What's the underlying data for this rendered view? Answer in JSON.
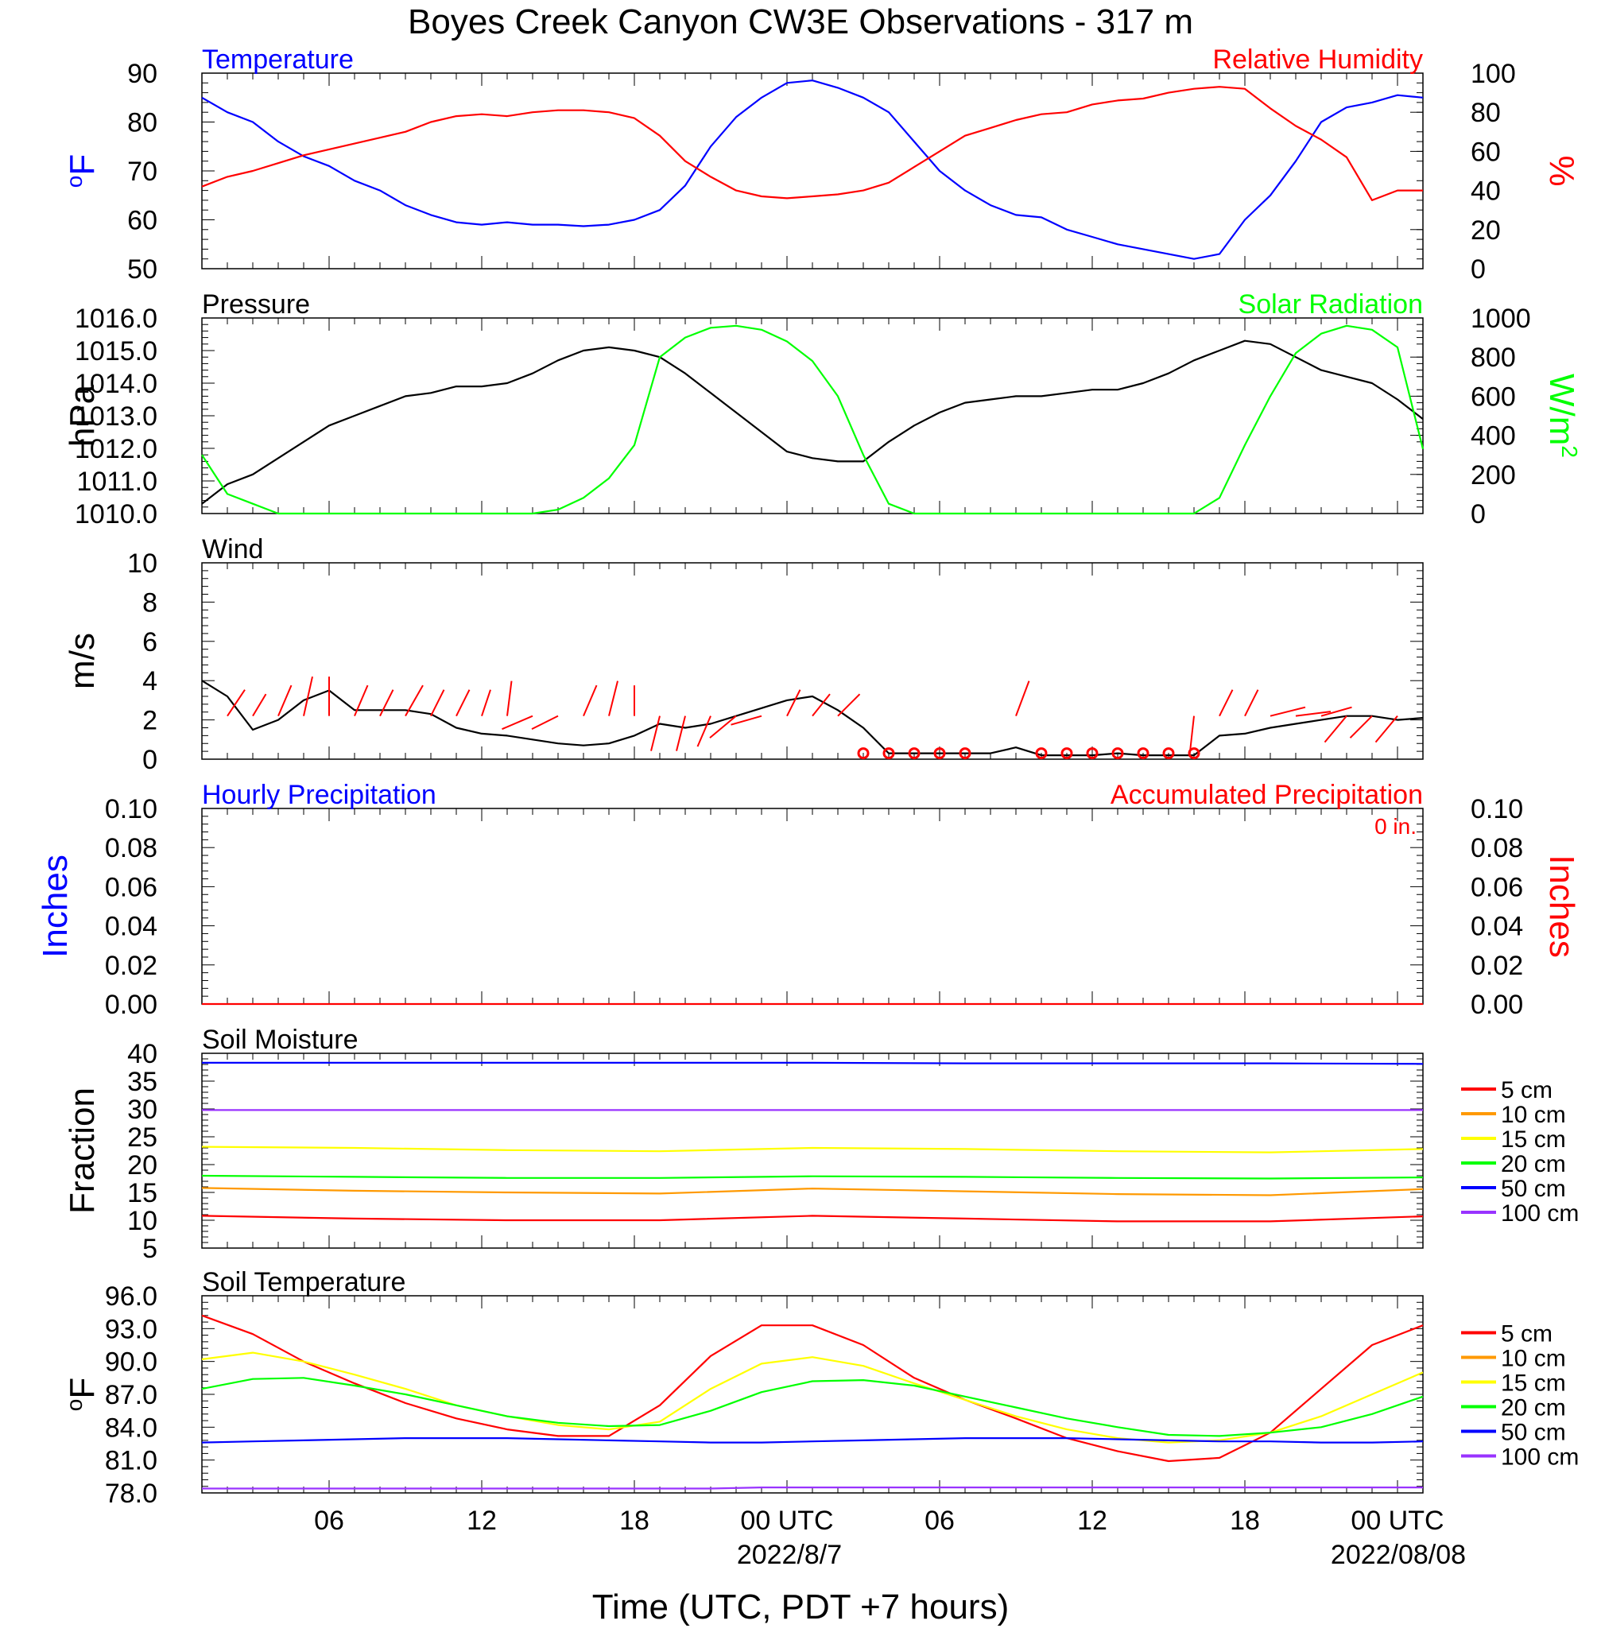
{
  "title": "Boyes Creek Canyon CW3E Observations - 317 m",
  "x_axis": {
    "label": "Time (UTC, PDT +7 hours)",
    "ticks": [
      "06",
      "12",
      "18",
      "00 UTC",
      "06",
      "12",
      "18",
      "00 UTC"
    ],
    "dates": [
      "2022/8/7",
      "2022/08/08"
    ],
    "range_hours": [
      1,
      49
    ]
  },
  "chart_data": [
    {
      "type": "line",
      "left_title": "Temperature",
      "right_title": "Relative Humidity",
      "ylabel_left": "oF",
      "ylabel_right": "%",
      "ylim_left": [
        50,
        90
      ],
      "yticks_left": [
        "50",
        "60",
        "70",
        "80",
        "90"
      ],
      "ylim_right": [
        0,
        100
      ],
      "yticks_right": [
        "0",
        "20",
        "40",
        "60",
        "80",
        "100"
      ],
      "x_hours": [
        1,
        2,
        3,
        4,
        5,
        6,
        7,
        8,
        9,
        10,
        11,
        12,
        13,
        14,
        15,
        16,
        17,
        18,
        19,
        20,
        21,
        22,
        23,
        24,
        25,
        26,
        27,
        28,
        29,
        30,
        31,
        32,
        33,
        34,
        35,
        36,
        37,
        38,
        39,
        40,
        41,
        42,
        43,
        44,
        45,
        46,
        47,
        48,
        49
      ],
      "series": [
        {
          "color": "#0000ff",
          "axis": "left",
          "values": [
            85,
            82,
            80,
            76,
            73,
            71,
            68,
            66,
            63,
            61,
            59.5,
            59,
            59.5,
            59,
            59,
            58.7,
            59,
            60,
            62,
            67,
            75,
            81,
            85,
            88,
            88.5,
            87,
            85,
            82,
            76,
            70,
            66,
            63,
            61,
            60.5,
            58,
            56.5,
            55,
            54,
            53,
            52,
            53,
            60,
            65,
            72,
            80,
            83,
            84,
            85.5,
            85
          ]
        },
        {
          "color": "#ff0000",
          "axis": "right",
          "values": [
            42,
            47,
            50,
            54,
            58,
            61,
            64,
            67,
            70,
            75,
            78,
            79,
            78,
            80,
            81,
            81,
            80,
            77,
            68,
            55,
            47,
            40,
            37,
            36,
            37,
            38,
            40,
            44,
            52,
            60,
            68,
            72,
            76,
            79,
            80,
            84,
            86,
            87,
            90,
            92,
            93,
            92,
            82,
            73,
            66,
            57,
            35,
            40,
            40
          ]
        }
      ]
    },
    {
      "type": "line",
      "left_title": "Pressure",
      "right_title": "Solar Radiation",
      "ylabel_left": "hPa",
      "ylabel_right": "W/m2",
      "ylim_left": [
        1010.0,
        1016.0
      ],
      "yticks_left": [
        "1010.0",
        "1011.0",
        "1012.0",
        "1013.0",
        "1014.0",
        "1015.0",
        "1016.0"
      ],
      "ylim_right": [
        0,
        1000
      ],
      "yticks_right": [
        "0",
        "200",
        "400",
        "600",
        "800",
        "1000"
      ],
      "x_hours": [
        1,
        2,
        3,
        4,
        5,
        6,
        7,
        8,
        9,
        10,
        11,
        12,
        13,
        14,
        15,
        16,
        17,
        18,
        19,
        20,
        21,
        22,
        23,
        24,
        25,
        26,
        27,
        28,
        29,
        30,
        31,
        32,
        33,
        34,
        35,
        36,
        37,
        38,
        39,
        40,
        41,
        42,
        43,
        44,
        45,
        46,
        47,
        48,
        49
      ],
      "series": [
        {
          "color": "#000000",
          "axis": "left",
          "values": [
            1010.3,
            1010.9,
            1011.2,
            1011.7,
            1012.2,
            1012.7,
            1013.0,
            1013.3,
            1013.6,
            1013.7,
            1013.9,
            1013.9,
            1014.0,
            1014.3,
            1014.7,
            1015.0,
            1015.1,
            1015.0,
            1014.8,
            1014.3,
            1013.7,
            1013.1,
            1012.5,
            1011.9,
            1011.7,
            1011.6,
            1011.6,
            1012.2,
            1012.7,
            1013.1,
            1013.4,
            1013.5,
            1013.6,
            1013.6,
            1013.7,
            1013.8,
            1013.8,
            1014.0,
            1014.3,
            1014.7,
            1015.0,
            1015.3,
            1015.2,
            1014.8,
            1014.4,
            1014.2,
            1014.0,
            1013.5,
            1012.9
          ]
        },
        {
          "color": "#00ff00",
          "axis": "right",
          "values": [
            300,
            100,
            50,
            0,
            0,
            0,
            0,
            0,
            0,
            0,
            0,
            0,
            0,
            0,
            20,
            80,
            180,
            350,
            800,
            900,
            950,
            960,
            940,
            880,
            780,
            600,
            300,
            50,
            0,
            0,
            0,
            0,
            0,
            0,
            0,
            0,
            0,
            0,
            0,
            0,
            80,
            350,
            600,
            820,
            920,
            960,
            940,
            850,
            330
          ]
        }
      ]
    },
    {
      "type": "line",
      "left_title": "Wind",
      "ylabel_left": "m/s",
      "ylim_left": [
        0,
        10
      ],
      "yticks_left": [
        "0",
        "2",
        "4",
        "6",
        "8",
        "10"
      ],
      "x_hours": [
        1,
        2,
        3,
        4,
        5,
        6,
        7,
        8,
        9,
        10,
        11,
        12,
        13,
        14,
        15,
        16,
        17,
        18,
        19,
        20,
        21,
        22,
        23,
        24,
        25,
        26,
        27,
        28,
        29,
        30,
        31,
        32,
        33,
        34,
        35,
        36,
        37,
        38,
        39,
        40,
        41,
        42,
        43,
        44,
        45,
        46,
        47,
        48,
        49
      ],
      "series": [
        {
          "color": "#000000",
          "axis": "left",
          "values": [
            4.0,
            3.2,
            1.5,
            2.0,
            3.0,
            3.5,
            2.5,
            2.5,
            2.5,
            2.3,
            1.6,
            1.3,
            1.2,
            1.0,
            0.8,
            0.7,
            0.8,
            1.2,
            1.8,
            1.6,
            1.8,
            2.2,
            2.6,
            3.0,
            3.2,
            2.5,
            1.6,
            0.3,
            0.3,
            0.3,
            0.3,
            0.3,
            0.6,
            0.2,
            0.2,
            0.2,
            0.3,
            0.2,
            0.2,
            0.2,
            1.2,
            1.3,
            1.6,
            1.8,
            2.0,
            2.2,
            2.2,
            2.0,
            2.1
          ]
        }
      ],
      "calm_markers_hours": [
        27,
        28,
        29,
        30,
        31,
        34,
        35,
        36,
        37,
        38,
        39,
        40
      ],
      "wind_barbs": [
        {
          "hour": 2,
          "u": 0.4,
          "v": 0.6
        },
        {
          "hour": 3,
          "u": 0.3,
          "v": 0.5
        },
        {
          "hour": 4,
          "u": 0.3,
          "v": 0.7
        },
        {
          "hour": 5,
          "u": 0.2,
          "v": 0.9
        },
        {
          "hour": 6,
          "u": 0.0,
          "v": 0.9
        },
        {
          "hour": 7,
          "u": 0.3,
          "v": 0.7
        },
        {
          "hour": 8,
          "u": 0.3,
          "v": 0.6
        },
        {
          "hour": 9,
          "u": 0.4,
          "v": 0.7
        },
        {
          "hour": 10,
          "u": 0.3,
          "v": 0.6
        },
        {
          "hour": 11,
          "u": 0.3,
          "v": 0.6
        },
        {
          "hour": 12,
          "u": 0.2,
          "v": 0.6
        },
        {
          "hour": 13,
          "u": 0.1,
          "v": 0.8
        },
        {
          "hour": 14,
          "u": -0.7,
          "v": -0.3
        },
        {
          "hour": 15,
          "u": -0.6,
          "v": -0.3
        },
        {
          "hour": 16,
          "u": 0.3,
          "v": 0.7
        },
        {
          "hour": 17,
          "u": 0.2,
          "v": 0.8
        },
        {
          "hour": 18,
          "u": 0.0,
          "v": 0.7
        },
        {
          "hour": 19,
          "u": -0.2,
          "v": -0.8
        },
        {
          "hour": 20,
          "u": -0.2,
          "v": -0.8
        },
        {
          "hour": 21,
          "u": -0.3,
          "v": -0.7
        },
        {
          "hour": 22,
          "u": -0.6,
          "v": -0.5
        },
        {
          "hour": 23,
          "u": -0.7,
          "v": -0.2
        },
        {
          "hour": 24,
          "u": 0.3,
          "v": 0.6
        },
        {
          "hour": 25,
          "u": 0.4,
          "v": 0.5
        },
        {
          "hour": 26,
          "u": 0.5,
          "v": 0.5
        },
        {
          "hour": 33,
          "u": 0.3,
          "v": 0.8
        },
        {
          "hour": 40,
          "u": -0.1,
          "v": -0.9
        },
        {
          "hour": 41,
          "u": 0.3,
          "v": 0.6
        },
        {
          "hour": 42,
          "u": 0.3,
          "v": 0.6
        },
        {
          "hour": 43,
          "u": 0.8,
          "v": 0.2
        },
        {
          "hour": 44,
          "u": 0.8,
          "v": 0.1
        },
        {
          "hour": 45,
          "u": 0.7,
          "v": 0.2
        },
        {
          "hour": 46,
          "u": -0.5,
          "v": -0.6
        },
        {
          "hour": 47,
          "u": -0.5,
          "v": -0.5
        },
        {
          "hour": 48,
          "u": -0.5,
          "v": -0.6
        }
      ]
    },
    {
      "type": "line",
      "left_title": "Hourly Precipitation",
      "right_title": "Accumulated Precipitation",
      "accum_total": "0 in.",
      "ylabel_left": "Inches",
      "ylabel_right": "Inches",
      "ylim_left": [
        0,
        0.1
      ],
      "yticks_left": [
        "0.00",
        "0.02",
        "0.04",
        "0.06",
        "0.08",
        "0.10"
      ],
      "ylim_right": [
        0,
        0.1
      ],
      "yticks_right": [
        "0.00",
        "0.02",
        "0.04",
        "0.06",
        "0.08",
        "0.10"
      ],
      "x_hours": [
        1,
        49
      ],
      "series": [
        {
          "color": "#ff0000",
          "axis": "left",
          "values": [
            0,
            0
          ]
        }
      ]
    },
    {
      "type": "line",
      "left_title": "Soil Moisture",
      "ylabel_left": "Fraction",
      "ylim_left": [
        5,
        40
      ],
      "yticks_left": [
        "5",
        "10",
        "15",
        "20",
        "25",
        "30",
        "35",
        "40"
      ],
      "x_hours": [
        1,
        7,
        13,
        19,
        25,
        31,
        37,
        43,
        49
      ],
      "series": [
        {
          "name": "5 cm",
          "color": "#ff0000",
          "values": [
            10.8,
            10.3,
            10.0,
            10.0,
            10.8,
            10.3,
            9.8,
            9.8,
            10.7
          ]
        },
        {
          "name": "10 cm",
          "color": "#ff9900",
          "values": [
            15.8,
            15.3,
            15.0,
            14.8,
            15.7,
            15.2,
            14.7,
            14.5,
            15.6
          ]
        },
        {
          "name": "15 cm",
          "color": "#ffff00",
          "values": [
            23.2,
            23.0,
            22.6,
            22.4,
            23.0,
            22.8,
            22.4,
            22.2,
            22.8
          ]
        },
        {
          "name": "20 cm",
          "color": "#00ff00",
          "values": [
            18.0,
            17.8,
            17.6,
            17.6,
            17.9,
            17.8,
            17.6,
            17.5,
            17.7
          ]
        },
        {
          "name": "50 cm",
          "color": "#0000ff",
          "values": [
            38.3,
            38.3,
            38.3,
            38.3,
            38.3,
            38.2,
            38.2,
            38.2,
            38.1
          ]
        },
        {
          "name": "100 cm",
          "color": "#9933ff",
          "values": [
            29.8,
            29.8,
            29.8,
            29.8,
            29.8,
            29.8,
            29.8,
            29.8,
            29.8
          ]
        }
      ]
    },
    {
      "type": "line",
      "left_title": "Soil Temperature",
      "ylabel_left": "oF",
      "ylim_left": [
        78.0,
        96.0
      ],
      "yticks_left": [
        "78.0",
        "81.0",
        "84.0",
        "87.0",
        "90.0",
        "93.0",
        "96.0"
      ],
      "x_hours": [
        1,
        3,
        5,
        7,
        9,
        11,
        13,
        15,
        17,
        19,
        21,
        23,
        25,
        27,
        29,
        31,
        33,
        35,
        37,
        39,
        41,
        43,
        45,
        47,
        49
      ],
      "series": [
        {
          "name": "5 cm",
          "color": "#ff0000",
          "values": [
            94.2,
            92.5,
            90.0,
            88.0,
            86.2,
            84.8,
            83.8,
            83.2,
            83.2,
            86.0,
            90.5,
            93.3,
            93.3,
            91.5,
            88.5,
            86.5,
            84.8,
            83.0,
            81.8,
            80.9,
            81.2,
            83.5,
            87.5,
            91.5,
            93.3
          ]
        },
        {
          "name": "10 cm",
          "color": "#ff9900",
          "values": []
        },
        {
          "name": "15 cm",
          "color": "#ffff00",
          "values": [
            90.2,
            90.8,
            90.0,
            88.8,
            87.5,
            86.0,
            85.0,
            84.2,
            83.8,
            84.5,
            87.5,
            89.8,
            90.4,
            89.6,
            88.0,
            86.5,
            85.0,
            83.8,
            83.0,
            82.6,
            82.8,
            83.5,
            85.0,
            87.0,
            89.0
          ]
        },
        {
          "name": "20 cm",
          "color": "#00ff00",
          "values": [
            87.5,
            88.4,
            88.5,
            87.8,
            87.0,
            86.0,
            85.0,
            84.4,
            84.1,
            84.2,
            85.5,
            87.2,
            88.2,
            88.3,
            87.8,
            86.8,
            85.8,
            84.8,
            84.0,
            83.3,
            83.2,
            83.5,
            84.0,
            85.2,
            86.8
          ]
        },
        {
          "name": "50 cm",
          "color": "#0000ff",
          "values": [
            82.6,
            82.7,
            82.8,
            82.9,
            83.0,
            83.0,
            83.0,
            82.9,
            82.8,
            82.7,
            82.6,
            82.6,
            82.7,
            82.8,
            82.9,
            83.0,
            83.0,
            83.0,
            82.9,
            82.8,
            82.7,
            82.7,
            82.6,
            82.6,
            82.7
          ]
        },
        {
          "name": "100 cm",
          "color": "#9933ff",
          "values": [
            78.4,
            78.4,
            78.4,
            78.4,
            78.4,
            78.4,
            78.4,
            78.4,
            78.4,
            78.4,
            78.4,
            78.5,
            78.5,
            78.5,
            78.5,
            78.5,
            78.5,
            78.5,
            78.5,
            78.5,
            78.5,
            78.5,
            78.5,
            78.5,
            78.5
          ]
        }
      ]
    }
  ]
}
